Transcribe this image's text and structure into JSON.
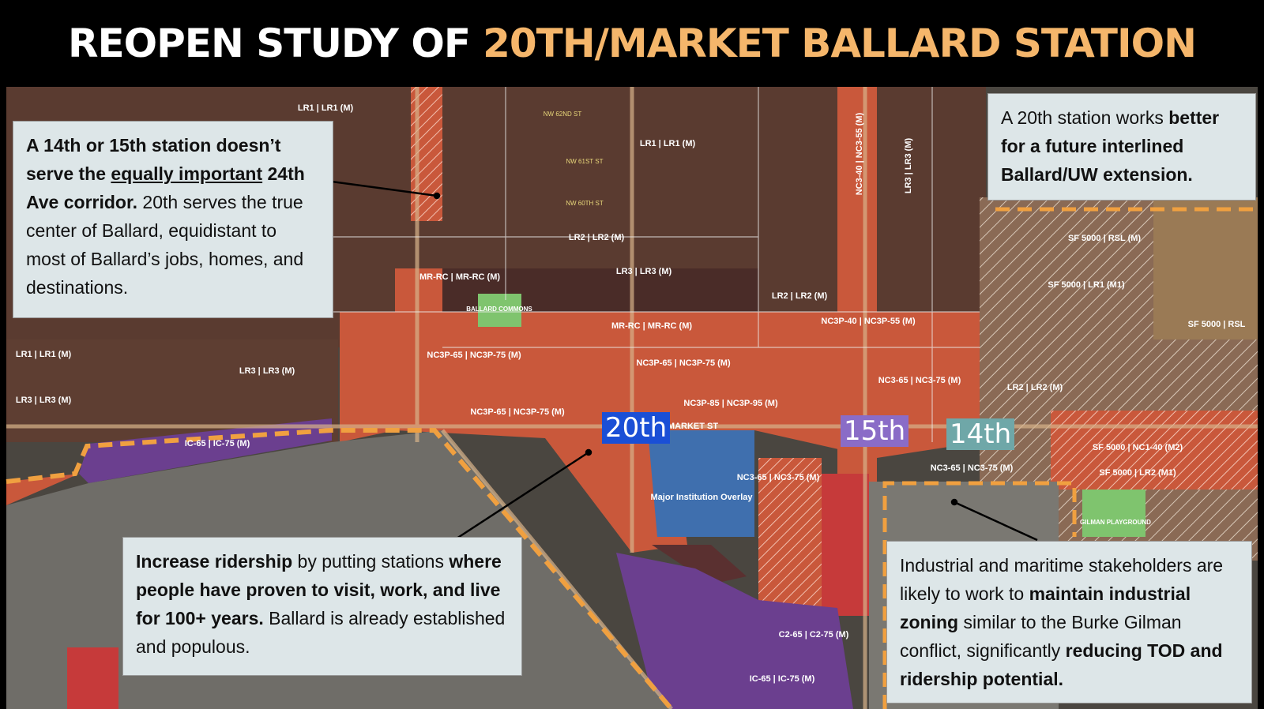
{
  "title": {
    "parts": [
      "REOPEN STUDY OF",
      "20TH/MARKET BALLARD STATION"
    ]
  },
  "callouts": [
    {
      "segments": [
        {
          "text": "A 14th or 15th station doesn’t serve the ",
          "style": "bold"
        },
        {
          "text": "equally important",
          "style": "bold-underline"
        },
        {
          "text": " 24th Ave corridor.",
          "style": "bold"
        },
        {
          "text": " 20th serves the true center of Ballard, equidistant to most of Ballard’s jobs, homes, and destinations.",
          "style": "normal"
        }
      ]
    },
    {
      "segments": [
        {
          "text": "A 20th station works ",
          "style": "normal"
        },
        {
          "text": "better for a future interlined Ballard/UW extension.",
          "style": "bold"
        }
      ]
    },
    {
      "segments": [
        {
          "text": "Increase ridership",
          "style": "bold"
        },
        {
          "text": " by putting stations ",
          "style": "normal"
        },
        {
          "text": "where people have proven to visit, work, and live for 100+ years.",
          "style": "bold"
        },
        {
          "text": " Ballard is already established and populous.",
          "style": "normal"
        }
      ]
    },
    {
      "segments": [
        {
          "text": "Industrial and maritime stakeholders are likely to work to ",
          "style": "normal"
        },
        {
          "text": "maintain industrial zoning",
          "style": "bold"
        },
        {
          "text": " similar to the Burke Gilman conflict, significantly ",
          "style": "normal"
        },
        {
          "text": "reducing TOD and ridership potential.",
          "style": "bold"
        }
      ]
    }
  ],
  "stations": [
    "20th",
    "15th",
    "14th"
  ],
  "zones": [
    "LR1 | LR1 (M)",
    "LR1 | LR1 (M)",
    "LR2 | LR2 (M)",
    "LR3 | LR3 (M)",
    "MR-RC | MR-RC (M)",
    "MR-RC | MR-RC (M)",
    "NC3P-65 | NC3P-75 (M)",
    "NC3P-65 | NC3P-75 (M)",
    "NC3P-65 | NC3P-75 (M)",
    "NC3P-85 | NC3P-95 (M)",
    "IC-65 | IC-75 (M)",
    "LR1 | LR1 (M)",
    "LR3 | LR3 (M)",
    "LR3 | LR3 (M)",
    "SF 5000 | RSL (M)",
    "SF 5000 | LR1 (M1)",
    "SF 5000 | RSL",
    "SF 5000 | NC1-40 (M2)",
    "SF 5000 | LR2 (M1)",
    "LR2 | LR2 (M)",
    "LR2 | LR2 (M)",
    "NC3P-40 | NC3P-55 (M)",
    "NC3-65 | NC3-75 (M)",
    "NC3-65 | NC3-75 (M)",
    "NC3-65 | NC3-75 (M)",
    "Major Institution Overlay",
    "C2-65 | C2-75 (M)",
    "IC-65 | IC-75 (M)",
    "BALLARD COMMONS",
    "GILMAN PLAYGROUND",
    "MARKET ST",
    "NC3-40 | NC3-55 (M)",
    "LR3 | LR3 (M)"
  ],
  "streets": [
    "NW 62ND ST",
    "NW 61ST ST",
    "NW 60TH ST"
  ]
}
